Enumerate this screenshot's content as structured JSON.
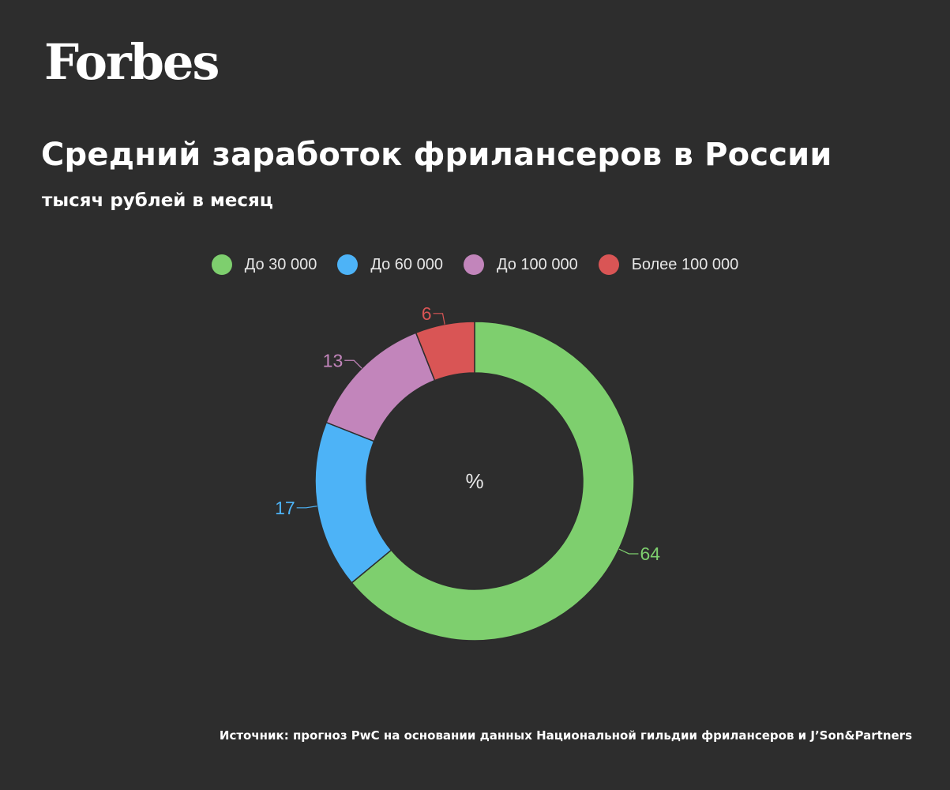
{
  "brand": {
    "logo_text": "Forbes"
  },
  "header": {
    "title": "Средний заработок фрилансеров в России",
    "subtitle": "тысяч рублей в месяц"
  },
  "legend": [
    {
      "label": "До 30 000",
      "color": "#7ecf6e"
    },
    {
      "label": "До 60 000",
      "color": "#4db3f7"
    },
    {
      "label": "До 100 000",
      "color": "#c285bb"
    },
    {
      "label": "Более 100 000",
      "color": "#d95555"
    }
  ],
  "chart_data": {
    "type": "pie",
    "style": "donut",
    "center_label": "%",
    "categories": [
      "До 30 000",
      "До 60 000",
      "До 100 000",
      "Более 100 000"
    ],
    "values": [
      64,
      17,
      13,
      6
    ],
    "colors": [
      "#7ecf6e",
      "#4db3f7",
      "#c285bb",
      "#d95555"
    ],
    "legend_position": "top"
  },
  "footer": {
    "source": "Источник: прогноз PwC на основании данных Национальной гильдии фрилансеров и J’Son&Partners"
  }
}
